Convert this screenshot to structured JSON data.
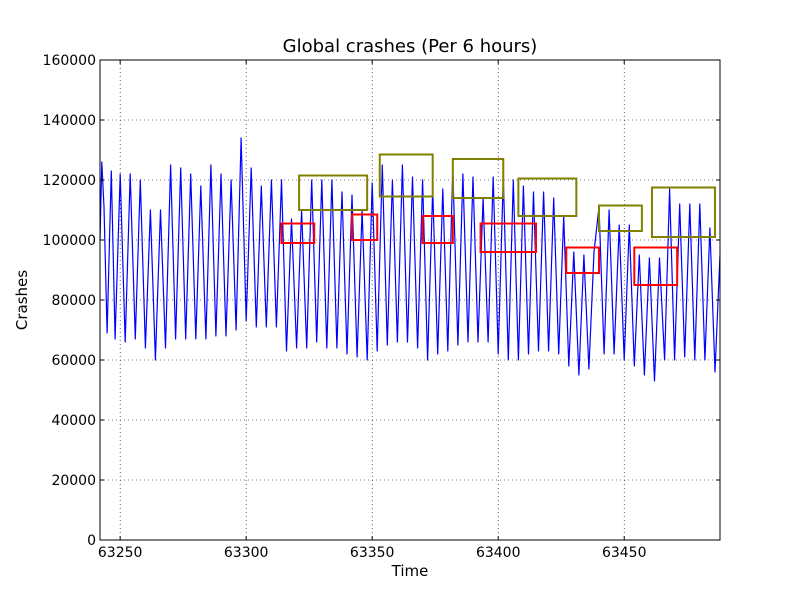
{
  "chart_data": {
    "type": "line",
    "title": "Global crashes (Per 6 hours)",
    "xlabel": "Time",
    "ylabel": "Crashes",
    "xlim": [
      63242,
      63488
    ],
    "ylim": [
      0,
      160000
    ],
    "xticks": [
      63250,
      63300,
      63350,
      63400,
      63450
    ],
    "xtick_labels": [
      "63250",
      "63300",
      "63350",
      "63400",
      "63450"
    ],
    "yticks": [
      0,
      20000,
      40000,
      60000,
      80000,
      100000,
      120000,
      140000,
      160000
    ],
    "ytick_labels": [
      "0",
      "20000",
      "40000",
      "60000",
      "80000",
      "100000",
      "120000",
      "140000",
      "160000"
    ],
    "grid": true,
    "line_color": "#0000ff",
    "series": [
      {
        "values": [
          [
            63242,
            100000
          ],
          [
            63242.7,
            126000
          ],
          [
            63243.6,
            111000
          ],
          [
            63244.8,
            69000
          ],
          [
            63246.5,
            123000
          ],
          [
            63248,
            67000
          ],
          [
            63250,
            122000
          ],
          [
            63252,
            66000
          ],
          [
            63254,
            122000
          ],
          [
            63256,
            67000
          ],
          [
            63258,
            120000
          ],
          [
            63260,
            64000
          ],
          [
            63262,
            110000
          ],
          [
            63264,
            60000
          ],
          [
            63266,
            110000
          ],
          [
            63268,
            64000
          ],
          [
            63270,
            125000
          ],
          [
            63272,
            67000
          ],
          [
            63274,
            124000
          ],
          [
            63276,
            67000
          ],
          [
            63278,
            122000
          ],
          [
            63280,
            67000
          ],
          [
            63282,
            118000
          ],
          [
            63284,
            67000
          ],
          [
            63286,
            125000
          ],
          [
            63288,
            68000
          ],
          [
            63290,
            122000
          ],
          [
            63292,
            68000
          ],
          [
            63294,
            120000
          ],
          [
            63296,
            70000
          ],
          [
            63298,
            134000
          ],
          [
            63300,
            73000
          ],
          [
            63302,
            124000
          ],
          [
            63304,
            71000
          ],
          [
            63306,
            118000
          ],
          [
            63308,
            71000
          ],
          [
            63310,
            120000
          ],
          [
            63312,
            71000
          ],
          [
            63314,
            120000
          ],
          [
            63316,
            63000
          ],
          [
            63318,
            107000
          ],
          [
            63320,
            64000
          ],
          [
            63322,
            110000
          ],
          [
            63324,
            64000
          ],
          [
            63326,
            120000
          ],
          [
            63328,
            66000
          ],
          [
            63330,
            120000
          ],
          [
            63332,
            64000
          ],
          [
            63334,
            120000
          ],
          [
            63336,
            64000
          ],
          [
            63338,
            116000
          ],
          [
            63340,
            62000
          ],
          [
            63342,
            115000
          ],
          [
            63344,
            61000
          ],
          [
            63346,
            110000
          ],
          [
            63348,
            60000
          ],
          [
            63350,
            119000
          ],
          [
            63352,
            63000
          ],
          [
            63354,
            125000
          ],
          [
            63356,
            65000
          ],
          [
            63358,
            120000
          ],
          [
            63360,
            66000
          ],
          [
            63362,
            125000
          ],
          [
            63364,
            66000
          ],
          [
            63366,
            121000
          ],
          [
            63368,
            64000
          ],
          [
            63370,
            120000
          ],
          [
            63372,
            60000
          ],
          [
            63374,
            117000
          ],
          [
            63376,
            62000
          ],
          [
            63378,
            117000
          ],
          [
            63380,
            63000
          ],
          [
            63382,
            124000
          ],
          [
            63384,
            65000
          ],
          [
            63386,
            122000
          ],
          [
            63388,
            66000
          ],
          [
            63390,
            121000
          ],
          [
            63392,
            66000
          ],
          [
            63394,
            114000
          ],
          [
            63396,
            66000
          ],
          [
            63398,
            121000
          ],
          [
            63400,
            62000
          ],
          [
            63402,
            121000
          ],
          [
            63404,
            60000
          ],
          [
            63406,
            120000
          ],
          [
            63408,
            60000
          ],
          [
            63410,
            118000
          ],
          [
            63412,
            62000
          ],
          [
            63414,
            116000
          ],
          [
            63416,
            63000
          ],
          [
            63418,
            116000
          ],
          [
            63420,
            63000
          ],
          [
            63422,
            114000
          ],
          [
            63424,
            62000
          ],
          [
            63426,
            108000
          ],
          [
            63428,
            58000
          ],
          [
            63430,
            96000
          ],
          [
            63432,
            55000
          ],
          [
            63434,
            95000
          ],
          [
            63436,
            57000
          ],
          [
            63438,
            96000
          ],
          [
            63440,
            111000
          ],
          [
            63442,
            62000
          ],
          [
            63444,
            110000
          ],
          [
            63446,
            62000
          ],
          [
            63448,
            105000
          ],
          [
            63450,
            60000
          ],
          [
            63452,
            105000
          ],
          [
            63454,
            58000
          ],
          [
            63456,
            95000
          ],
          [
            63458,
            55000
          ],
          [
            63460,
            94000
          ],
          [
            63462,
            53000
          ],
          [
            63464,
            94000
          ],
          [
            63466,
            60000
          ],
          [
            63468,
            117000
          ],
          [
            63470,
            60000
          ],
          [
            63472,
            112000
          ],
          [
            63474,
            61000
          ],
          [
            63476,
            112000
          ],
          [
            63478,
            60000
          ],
          [
            63480,
            112000
          ],
          [
            63482,
            60000
          ],
          [
            63484,
            104000
          ],
          [
            63486,
            56000
          ],
          [
            63488,
            95000
          ]
        ]
      }
    ],
    "annotations": {
      "red_boxes": [
        {
          "x": [
            63314,
            63327
          ],
          "y": [
            99000,
            105500
          ]
        },
        {
          "x": [
            63342,
            63352
          ],
          "y": [
            100000,
            108500
          ]
        },
        {
          "x": [
            63370,
            63382
          ],
          "y": [
            99000,
            108000
          ]
        },
        {
          "x": [
            63393,
            63415
          ],
          "y": [
            96000,
            105500
          ]
        },
        {
          "x": [
            63427,
            63440
          ],
          "y": [
            89000,
            97500
          ]
        },
        {
          "x": [
            63454,
            63471
          ],
          "y": [
            85000,
            97500
          ]
        }
      ],
      "olive_boxes": [
        {
          "x": [
            63321,
            63348
          ],
          "y": [
            110000,
            121500
          ]
        },
        {
          "x": [
            63353,
            63374
          ],
          "y": [
            114500,
            128500
          ]
        },
        {
          "x": [
            63382,
            63402
          ],
          "y": [
            114000,
            127000
          ]
        },
        {
          "x": [
            63408,
            63431
          ],
          "y": [
            108000,
            120500
          ]
        },
        {
          "x": [
            63440,
            63457
          ],
          "y": [
            103000,
            111500
          ]
        },
        {
          "x": [
            63461,
            63486
          ],
          "y": [
            101000,
            117500
          ]
        }
      ],
      "red_color": "#ff0000",
      "olive_color": "#808000"
    }
  }
}
